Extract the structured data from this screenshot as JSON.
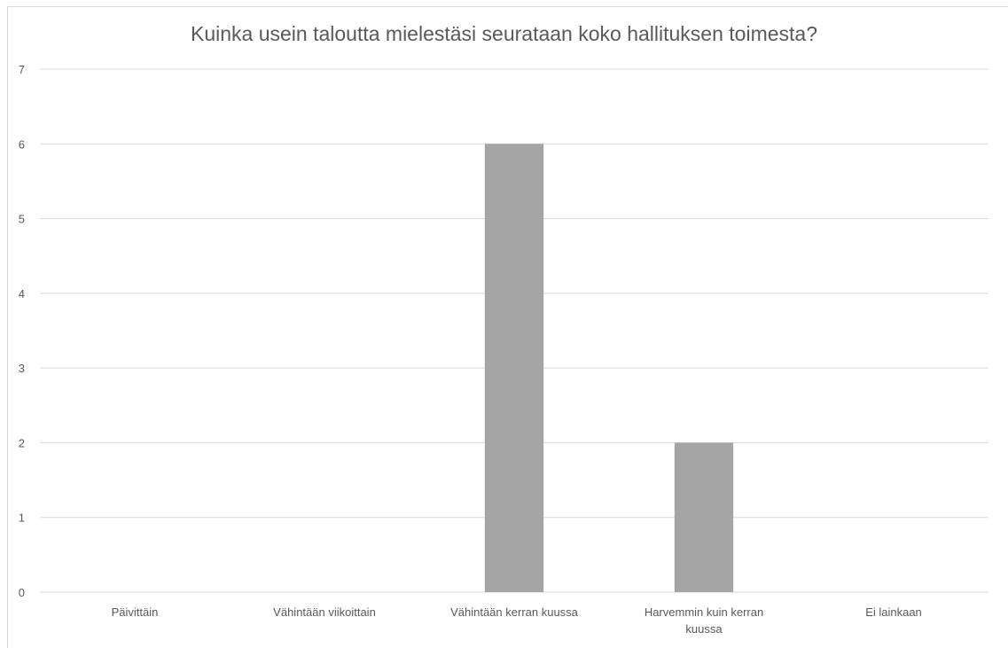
{
  "chart_data": {
    "type": "bar",
    "title": "Kuinka usein taloutta mielestäsi seurataan koko hallituksen toimesta?",
    "categories": [
      [
        "Päivittäin"
      ],
      [
        "Vähintään viikoittain"
      ],
      [
        "Vähintään kerran kuussa"
      ],
      [
        "Harvemmin kuin kerran",
        "kuussa"
      ],
      [
        "Ei lainkaan"
      ]
    ],
    "values": [
      0,
      0,
      6,
      2,
      0
    ],
    "ylim": [
      0,
      7
    ],
    "yticks": [
      "0",
      "1",
      "2",
      "3",
      "4",
      "5",
      "6",
      "7"
    ],
    "grid": true,
    "bar_color": "#a5a5a5",
    "grid_color": "#d9d9d9",
    "text_color": "#595959"
  }
}
